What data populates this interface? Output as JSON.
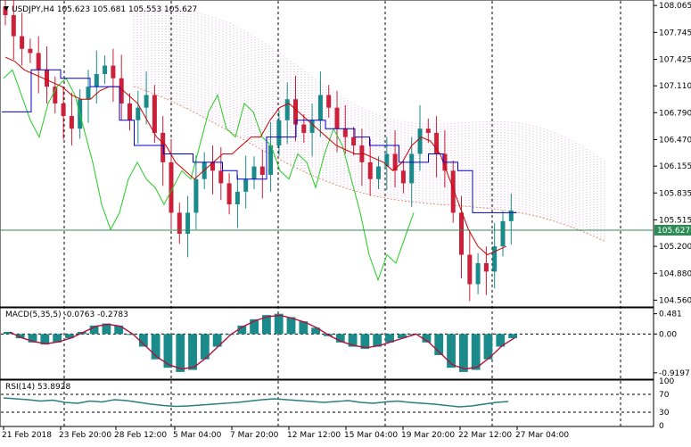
{
  "symbol_header": "USDJPY,H4  105.623 105.681 105.553 105.627",
  "price_axis_labels": [
    "108.065",
    "107.745",
    "107.425",
    "107.110",
    "106.790",
    "106.470",
    "106.155",
    "105.835",
    "105.515",
    "105.200",
    "104.880",
    "104.560"
  ],
  "current_price_label": "105.627",
  "macd_label": "MACD(5,35,5) -0.0763 -0.2783",
  "macd_axis_labels": [
    "0.481",
    "0.00",
    "-0.9197"
  ],
  "rsi_label": "RSI(14) 53.8928",
  "rsi_axis_labels": [
    "100",
    "70",
    "30",
    "0"
  ],
  "time_axis_labels": [
    "21 Feb 2018",
    "23 Feb 20:00",
    "28 Feb 12:00",
    "5 Mar 04:00",
    "7 Mar 20:00",
    "12 Mar 12:00",
    "15 Mar 04:00",
    "19 Mar 20:00",
    "22 Mar 12:00",
    "27 Mar 04:00"
  ],
  "colors": {
    "bull_candle": "#1a8a8a",
    "bear_candle": "#cc1f3a",
    "kijun": "#0000cc",
    "tenkan": "#cc0000",
    "chikou": "#22cc22",
    "cloud_fill": "#cc99cc",
    "price_line": "#2e8b57",
    "macd_line": "#b0123a",
    "rsi_line": "#2a7f7f"
  },
  "chart_data": [
    {
      "type": "candlestick",
      "title": "USDJPY,H4",
      "ylim": [
        104.49,
        108.12
      ],
      "yticks": [
        108.065,
        107.745,
        107.425,
        107.11,
        106.79,
        106.47,
        106.155,
        105.835,
        105.515,
        105.2,
        104.88,
        104.56
      ],
      "current_price": 105.627,
      "close_path": [
        107.95,
        107.7,
        107.55,
        107.5,
        107.3,
        107.1,
        106.9,
        106.75,
        106.6,
        106.95,
        107.1,
        107.25,
        107.35,
        107.2,
        106.9,
        106.7,
        106.85,
        107.0,
        106.55,
        106.2,
        105.6,
        105.35,
        105.6,
        106.0,
        106.2,
        106.1,
        105.95,
        105.7,
        105.85,
        106.0,
        106.15,
        106.05,
        106.4,
        106.7,
        106.95,
        106.65,
        106.55,
        106.7,
        107.0,
        106.85,
        106.6,
        106.5,
        106.4,
        106.2,
        106.0,
        106.15,
        106.3,
        106.1,
        105.95,
        106.3,
        106.6,
        106.55,
        106.3,
        106.1,
        105.6,
        105.1,
        104.75,
        105.0,
        104.9,
        105.2,
        105.5,
        105.627
      ],
      "tenkan_path": [
        107.45,
        107.4,
        107.3,
        107.25,
        107.2,
        107.15,
        107.1,
        107.0,
        106.95,
        106.95,
        107.05,
        107.1,
        107.1,
        107.0,
        106.9,
        106.7,
        106.5,
        106.4,
        106.2,
        106.1,
        106.0,
        106.1,
        106.2,
        106.3,
        106.3,
        106.4,
        106.5,
        106.5,
        106.7,
        106.85,
        106.9,
        106.8,
        106.7,
        106.6,
        106.5,
        106.4,
        106.35,
        106.3,
        106.3,
        106.25,
        106.2,
        106.1,
        106.2,
        106.4,
        106.5,
        106.45,
        106.3,
        106.0,
        105.7,
        105.4,
        105.2,
        105.1,
        105.15,
        105.2
      ],
      "kijun_path": [
        106.8,
        106.8,
        107.3,
        107.3,
        107.2,
        107.2,
        107.1,
        107.1,
        106.7,
        106.4,
        106.4,
        106.3,
        106.3,
        106.2,
        106.2,
        106.1,
        106.0,
        106.0,
        106.5,
        106.5,
        106.7,
        106.7,
        106.6,
        106.6,
        106.5,
        106.4,
        106.4,
        106.2,
        106.2,
        106.3,
        106.2,
        106.1,
        105.6,
        105.6,
        105.6
      ],
      "chikou_path": [
        107.2,
        107.3,
        107.0,
        106.7,
        106.5,
        106.9,
        107.1,
        107.2,
        107.0,
        106.6,
        106.2,
        105.7,
        105.4,
        105.6,
        106.0,
        106.2,
        106.0,
        105.9,
        105.7,
        105.9,
        106.1,
        106.0,
        106.4,
        106.8,
        107.0,
        106.6,
        106.5,
        106.9,
        106.8,
        106.5,
        106.4,
        106.1,
        106.0,
        106.3,
        106.2,
        105.9,
        106.3,
        106.6,
        106.4,
        106.0,
        105.6,
        105.1,
        104.8,
        105.1,
        105.0,
        105.3,
        105.6
      ]
    },
    {
      "type": "bar",
      "title": "MACD(5,35,5)",
      "values_label": [
        -0.0763,
        -0.2783
      ],
      "yticks": [
        0.481,
        0.0,
        -0.9197
      ],
      "histogram": [
        0.05,
        -0.1,
        -0.2,
        -0.25,
        -0.2,
        -0.1,
        0.05,
        0.2,
        0.25,
        0.2,
        0.0,
        -0.3,
        -0.6,
        -0.8,
        -0.9,
        -0.85,
        -0.6,
        -0.3,
        0.0,
        0.2,
        0.35,
        0.45,
        0.48,
        0.4,
        0.3,
        0.15,
        -0.05,
        -0.2,
        -0.3,
        -0.35,
        -0.3,
        -0.2,
        -0.1,
        0.0,
        -0.2,
        -0.5,
        -0.8,
        -0.9,
        -0.85,
        -0.6,
        -0.3,
        -0.1
      ]
    },
    {
      "type": "line",
      "title": "RSI(14)",
      "value_label": 53.8928,
      "ylim": [
        0,
        100
      ],
      "levels": [
        70,
        30
      ],
      "values": [
        62,
        60,
        58,
        55,
        57,
        52,
        50,
        55,
        53,
        58,
        56,
        52,
        48,
        45,
        43,
        44,
        46,
        48,
        50,
        52,
        55,
        58,
        60,
        58,
        56,
        54,
        52,
        54,
        56,
        52,
        50,
        53,
        55,
        52,
        50,
        48,
        45,
        42,
        44,
        48,
        52,
        54
      ]
    }
  ]
}
